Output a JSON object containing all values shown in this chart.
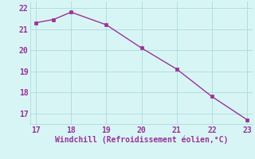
{
  "x": [
    17,
    17.5,
    18,
    19,
    20,
    21,
    22,
    23
  ],
  "y": [
    21.3,
    21.45,
    21.8,
    21.2,
    20.1,
    19.1,
    17.8,
    16.7
  ],
  "line_color": "#993399",
  "marker_color": "#993399",
  "marker_style": "s",
  "marker_size": 2.5,
  "line_width": 1.0,
  "background_color": "#d8f5f5",
  "grid_color": "#b0dede",
  "xlabel": "Windchill (Refroidissement éolien,°C)",
  "xlabel_color": "#993399",
  "xlabel_fontsize": 7,
  "tick_color": "#993399",
  "tick_fontsize": 7,
  "xlim": [
    16.85,
    23.15
  ],
  "ylim": [
    16.5,
    22.3
  ],
  "xticks": [
    17,
    18,
    19,
    20,
    21,
    22,
    23
  ],
  "yticks": [
    17,
    18,
    19,
    20,
    21,
    22
  ]
}
